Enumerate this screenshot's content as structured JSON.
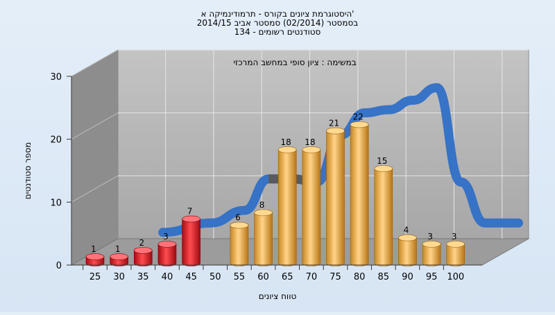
{
  "chart_data": {
    "type": "bar",
    "title_lines": [
      "היסטוגרמת ציונים בקורס - תרמודינמיקה א'",
      "בסמסטר  (02/2014)  סמסטר אביב 2014/15",
      "סטודנטים רשומים - 134"
    ],
    "annotation": "במשימה : ציון סופי במחשב המרכזי",
    "xlabel": "טווח ציונים",
    "ylabel": "מספר סטודנטים",
    "x_ticks": [
      "25",
      "30",
      "35",
      "40",
      "45",
      "50",
      "55",
      "60",
      "65",
      "70",
      "75",
      "80",
      "85",
      "90",
      "95",
      "100"
    ],
    "y_ticks": [
      "0",
      "10",
      "20",
      "30"
    ],
    "ylim": [
      0,
      30
    ],
    "bars": [
      {
        "x": 25,
        "value": 1,
        "label": "1",
        "group": "fail"
      },
      {
        "x": 30,
        "value": 1,
        "label": "1",
        "group": "fail"
      },
      {
        "x": 35,
        "value": 2,
        "label": "2",
        "group": "fail"
      },
      {
        "x": 40,
        "value": 3,
        "label": "3",
        "group": "fail"
      },
      {
        "x": 45,
        "value": 7,
        "label": "7",
        "group": "fail"
      },
      {
        "x": 55,
        "value": 6,
        "label": "6",
        "group": "pass"
      },
      {
        "x": 60,
        "value": 8,
        "label": "8",
        "group": "pass"
      },
      {
        "x": 65,
        "value": 18,
        "label": "18",
        "group": "pass"
      },
      {
        "x": 70,
        "value": 18,
        "label": "18",
        "group": "pass"
      },
      {
        "x": 75,
        "value": 21,
        "label": "21",
        "group": "pass"
      },
      {
        "x": 80,
        "value": 22,
        "label": "22",
        "group": "pass"
      },
      {
        "x": 85,
        "value": 15,
        "label": "15",
        "group": "pass"
      },
      {
        "x": 90,
        "value": 4,
        "label": "4",
        "group": "pass"
      },
      {
        "x": 95,
        "value": 3,
        "label": "3",
        "group": "pass"
      },
      {
        "x": 100,
        "value": 3,
        "label": "3",
        "group": "pass"
      }
    ],
    "trend": {
      "x": [
        30,
        40,
        47,
        52,
        57,
        62,
        67,
        72,
        77,
        82,
        87,
        92,
        97,
        104
      ],
      "y": [
        1,
        2.5,
        4.5,
        9.5,
        9.5,
        9,
        16.5,
        20,
        20.5,
        22,
        24,
        9,
        2.5,
        2.5
      ]
    },
    "colors": {
      "fail": "#e21b23",
      "pass": "#f3b652",
      "trend": "#2f6fc7",
      "trend_back": "#5a5a5a",
      "wall_left": "#8c8c8c",
      "wall_back": "#b4b4b4",
      "floor": "#9a9a9a"
    },
    "grid": true,
    "legend": "none"
  }
}
